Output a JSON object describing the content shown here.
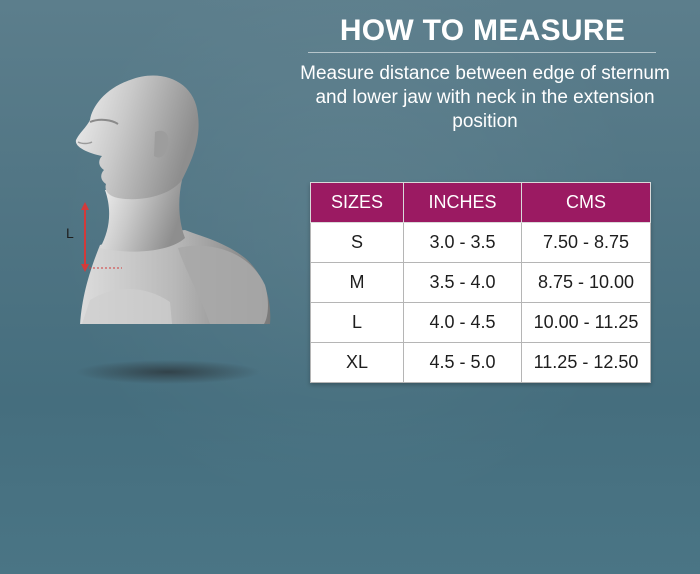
{
  "header": {
    "title": "HOW TO MEASURE",
    "instructions": "Measure distance between edge of sternum and lower jaw with neck in the extension position"
  },
  "figure": {
    "measure_label": "L",
    "measure_color": "#d23a3a"
  },
  "size_chart": {
    "columns": [
      "SIZES",
      "INCHES",
      "CMS"
    ],
    "rows": [
      [
        "S",
        "3.0 - 3.5",
        "7.50 - 8.75"
      ],
      [
        "M",
        "3.5 - 4.0",
        "8.75 - 10.00"
      ],
      [
        "L",
        "4.0 - 4.5",
        "10.00 - 11.25"
      ],
      [
        "XL",
        "4.5 - 5.0",
        "11.25 - 12.50"
      ]
    ]
  },
  "colors": {
    "background": "#4f7483",
    "header_fill": "#9b1a62",
    "text": "#ffffff"
  }
}
